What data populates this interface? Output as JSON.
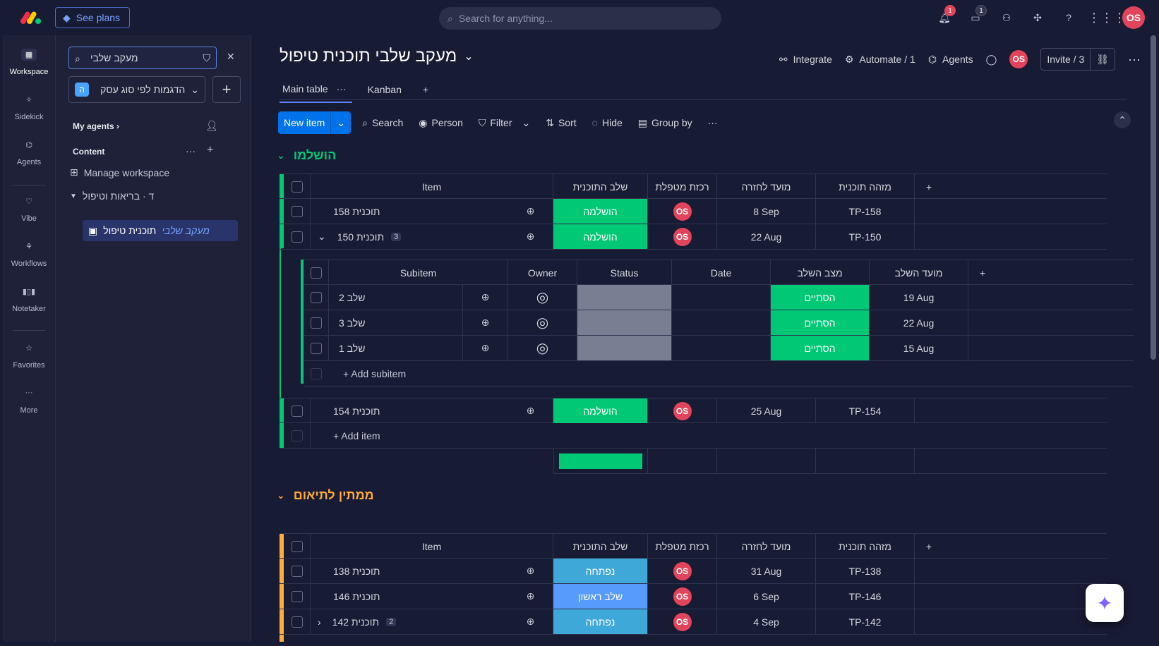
{
  "top": {
    "see_plans": "See plans",
    "search_placeholder": "Search for anything...",
    "notif_badge": "1",
    "inbox_badge": "1",
    "avatar": "OS"
  },
  "rail": [
    {
      "label": "Workspace",
      "icon": "grid-icon"
    },
    {
      "label": "Sidekick",
      "icon": "sparkle-icon"
    },
    {
      "label": "Agents",
      "icon": "agents-icon"
    },
    {
      "label": "Vibe",
      "icon": "heart-icon"
    },
    {
      "label": "Workflows",
      "icon": "workflow-icon"
    },
    {
      "label": "Notetaker",
      "icon": "waveform-icon"
    },
    {
      "label": "Favorites",
      "icon": "star-icon"
    },
    {
      "label": "More",
      "icon": "more-icon"
    }
  ],
  "sidebar": {
    "search_value": "מעקב שלבי",
    "workspace": "הדגמות לפי סוג עסק",
    "workspace_chip": "ה",
    "my_agents": "My agents",
    "content": "Content",
    "manage": "Manage workspace",
    "folder": "ד · בריאות וטיפול",
    "board_highlight": "מעקב שלבי",
    "board_rest": "תוכנית טיפול"
  },
  "board": {
    "title": "מעקב שלבי תוכנית טיפול",
    "integrate": "Integrate",
    "automate": "Automate / 1",
    "agents": "Agents",
    "avatar": "OS",
    "invite": "Invite / 3",
    "tabs": [
      "Main table",
      "Kanban"
    ]
  },
  "toolbar": {
    "new_item": "New item",
    "search": "Search",
    "person": "Person",
    "filter": "Filter",
    "sort": "Sort",
    "hide": "Hide",
    "group_by": "Group by"
  },
  "columns": {
    "item": "Item",
    "stage": "שלב התוכנית",
    "nurse": "רכזת מטפלת",
    "due": "מועד לחזרה",
    "plan_id": "מזהה תוכנית"
  },
  "sub_columns": {
    "subitem": "Subitem",
    "owner": "Owner",
    "status": "Status",
    "date": "Date",
    "stage_state": "מצב השלב",
    "stage_due": "מועד השלב"
  },
  "colors": {
    "done": "#00c875",
    "open": "#3ea8d8",
    "first": "#579bfc",
    "group1": "#00c875",
    "group2": "#fdab3d"
  },
  "group1": {
    "title": "הושלמו",
    "rows": [
      {
        "name": "תוכנית 158",
        "stage": "הושלמה",
        "owner": "OS",
        "due": "8 Sep",
        "id": "TP-158"
      },
      {
        "name": "תוכנית 150",
        "count": "3",
        "stage": "הושלמה",
        "owner": "OS",
        "due": "22 Aug",
        "id": "TP-150"
      },
      {
        "name": "תוכנית 154",
        "stage": "הושלמה",
        "owner": "OS",
        "due": "25 Aug",
        "id": "TP-154"
      }
    ],
    "subitems": [
      {
        "name": "שלב 2",
        "state": "הסתיים",
        "due": "19 Aug"
      },
      {
        "name": "שלב 3",
        "state": "הסתיים",
        "due": "22 Aug"
      },
      {
        "name": "שלב 1",
        "state": "הסתיים",
        "due": "15 Aug"
      }
    ],
    "add_subitem": "+ Add subitem",
    "add_item": "+ Add item"
  },
  "group2": {
    "title": "ממתין לתיאום",
    "rows": [
      {
        "name": "תוכנית 138",
        "stage": "נפתחה",
        "owner": "OS",
        "due": "31 Aug",
        "id": "TP-138"
      },
      {
        "name": "תוכנית 146",
        "stage": "שלב ראשון",
        "owner": "OS",
        "due": "6 Sep",
        "id": "TP-146"
      },
      {
        "name": "תוכנית 142",
        "count": "2",
        "stage": "נפתחה",
        "owner": "OS",
        "due": "4 Sep",
        "id": "TP-142"
      }
    ]
  }
}
